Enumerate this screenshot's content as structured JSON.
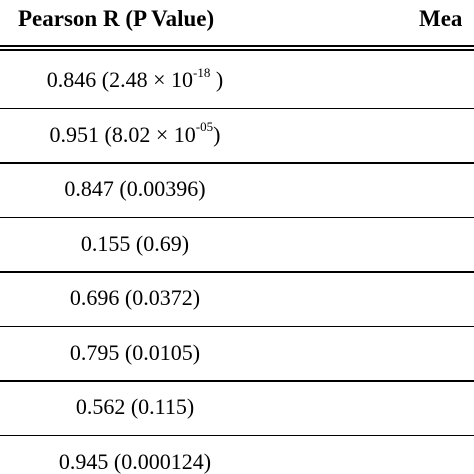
{
  "header": {
    "col1": "Pearson R (P Value)",
    "col2": "Mea"
  },
  "rows": [
    {
      "r": "0.846",
      "p_base": "2.48 × 10",
      "p_exp": "-18",
      "p_tail": " )"
    },
    {
      "r": "0.951",
      "p_base": "8.02 × 10",
      "p_exp": "-05",
      "p_tail": ")"
    },
    {
      "r": "0.847",
      "p": "0.00396"
    },
    {
      "r": "0.155",
      "p": "0.69"
    },
    {
      "r": "0.696",
      "p": "0.0372"
    },
    {
      "r": "0.795",
      "p": "0.0105"
    },
    {
      "r": "0.562",
      "p": "0.115"
    },
    {
      "r": "0.945",
      "p": "0.000124"
    }
  ]
}
